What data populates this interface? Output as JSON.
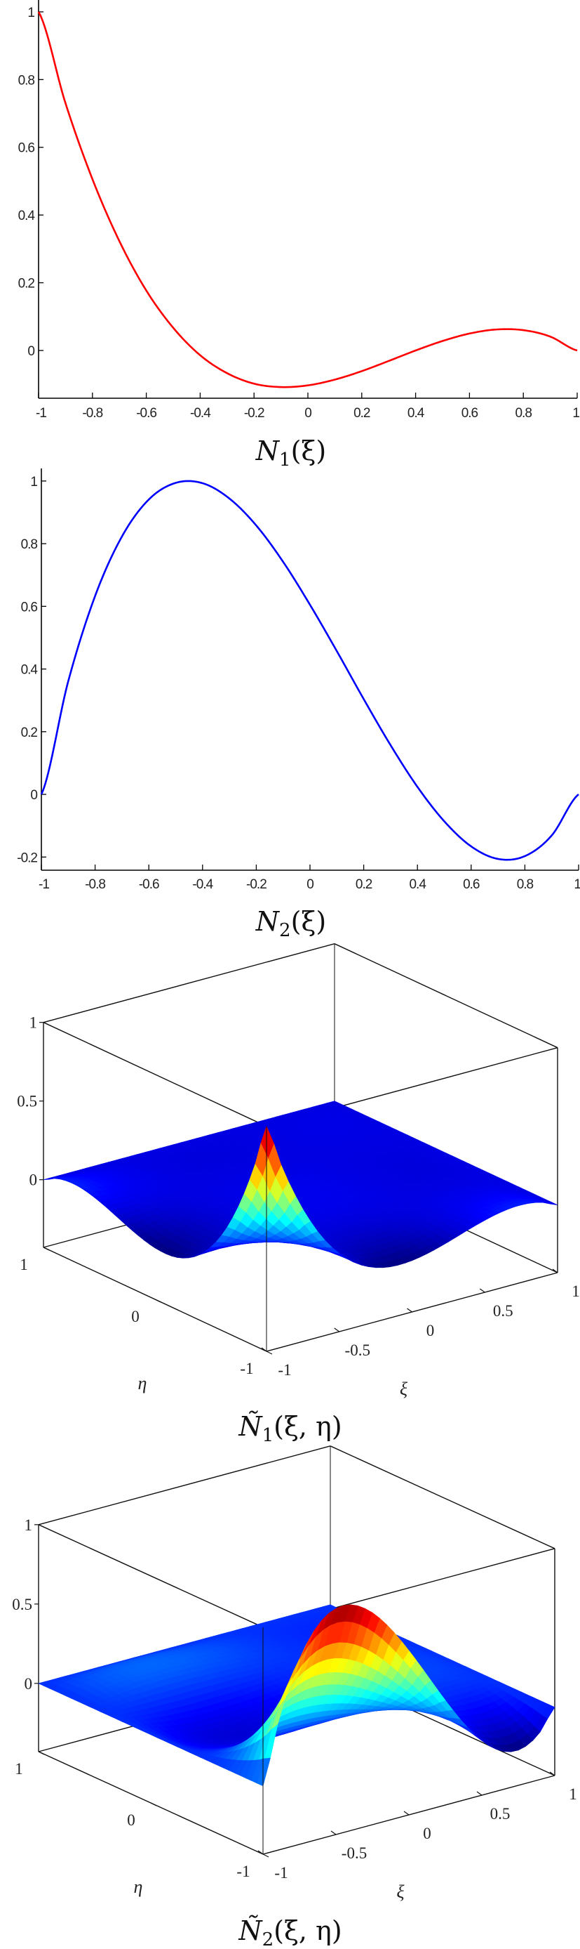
{
  "chart_data": [
    {
      "type": "line",
      "caption": {
        "symbol": "N",
        "sub": "1",
        "args": "(ξ)"
      },
      "color": "#ff0000",
      "x": [
        -1,
        -0.9,
        -0.8,
        -0.7,
        -0.6,
        -0.5,
        -0.4,
        -0.3,
        -0.2,
        -0.1,
        0,
        0.1,
        0.2,
        0.3,
        0.4,
        0.5,
        0.6,
        0.7,
        0.8,
        0.9,
        1
      ],
      "y": [
        1.0,
        0.73,
        0.506,
        0.323,
        0.177,
        0.067,
        -0.014,
        -0.067,
        -0.098,
        -0.108,
        -0.103,
        -0.086,
        -0.061,
        -0.031,
        0.0,
        0.028,
        0.05,
        0.062,
        0.06,
        0.041,
        0.0
      ],
      "xlim": [
        -1,
        1
      ],
      "ylim": [
        -0.141,
        1.035
      ],
      "xticks": [
        "-1",
        "-0.8",
        "-0.6",
        "-0.4",
        "-0.2",
        "0",
        "0.2",
        "0.4",
        "0.6",
        "0.8",
        "1"
      ],
      "yticks": [
        "0",
        "0.2",
        "0.4",
        "0.6",
        "0.8",
        "1"
      ]
    },
    {
      "type": "line",
      "caption": {
        "symbol": "N",
        "sub": "2",
        "args": "(ξ)"
      },
      "color": "#0000ff",
      "x": [
        -1,
        -0.9,
        -0.8,
        -0.7,
        -0.6,
        -0.5,
        -0.4,
        -0.3,
        -0.2,
        -0.1,
        0,
        0.1,
        0.2,
        0.3,
        0.4,
        0.5,
        0.6,
        0.7,
        0.8,
        0.9,
        1
      ],
      "y": [
        0.0,
        0.361,
        0.633,
        0.823,
        0.941,
        0.994,
        0.993,
        0.944,
        0.858,
        0.742,
        0.605,
        0.457,
        0.304,
        0.157,
        0.024,
        -0.086,
        -0.166,
        -0.206,
        -0.197,
        -0.131,
        0.0
      ],
      "xlim": [
        -1,
        1
      ],
      "ylim": [
        -0.242,
        1.04
      ],
      "xticks": [
        "-1",
        "-0.8",
        "-0.6",
        "-0.4",
        "-0.2",
        "0",
        "0.2",
        "0.4",
        "0.6",
        "0.8",
        "1"
      ],
      "yticks": [
        "-0.2",
        "0",
        "0.2",
        "0.4",
        "0.6",
        "0.8",
        "1"
      ]
    },
    {
      "type": "surface",
      "caption": {
        "symbol": "Ñ",
        "sub": "1",
        "args": "(ξ, η)"
      },
      "xi_series": 0,
      "eta_series": 0,
      "xlabel": "ξ",
      "ylabel": "η",
      "xlim": [
        -1,
        1
      ],
      "ylim": [
        -1,
        1
      ],
      "zlim": [
        -0.43,
        1
      ],
      "xticks": [
        "-1",
        "-0.5",
        "0",
        "0.5",
        "1"
      ],
      "yticks": [
        "-1",
        "0",
        "1"
      ],
      "zticks": [
        "0",
        "0.5",
        "1"
      ],
      "colormap": "jet"
    },
    {
      "type": "surface",
      "caption": {
        "symbol": "Ñ",
        "sub": "2",
        "args": "(ξ, η)"
      },
      "xi_series": 1,
      "eta_series": 0,
      "xlabel": "ξ",
      "ylabel": "η",
      "xlim": [
        -1,
        1
      ],
      "ylim": [
        -1,
        1
      ],
      "zlim": [
        -0.43,
        1
      ],
      "xticks": [
        "-1",
        "-0.5",
        "0",
        "0.5",
        "1"
      ],
      "yticks": [
        "-1",
        "0",
        "1"
      ],
      "zticks": [
        "0",
        "0.5",
        "1"
      ],
      "colormap": "jet"
    }
  ]
}
